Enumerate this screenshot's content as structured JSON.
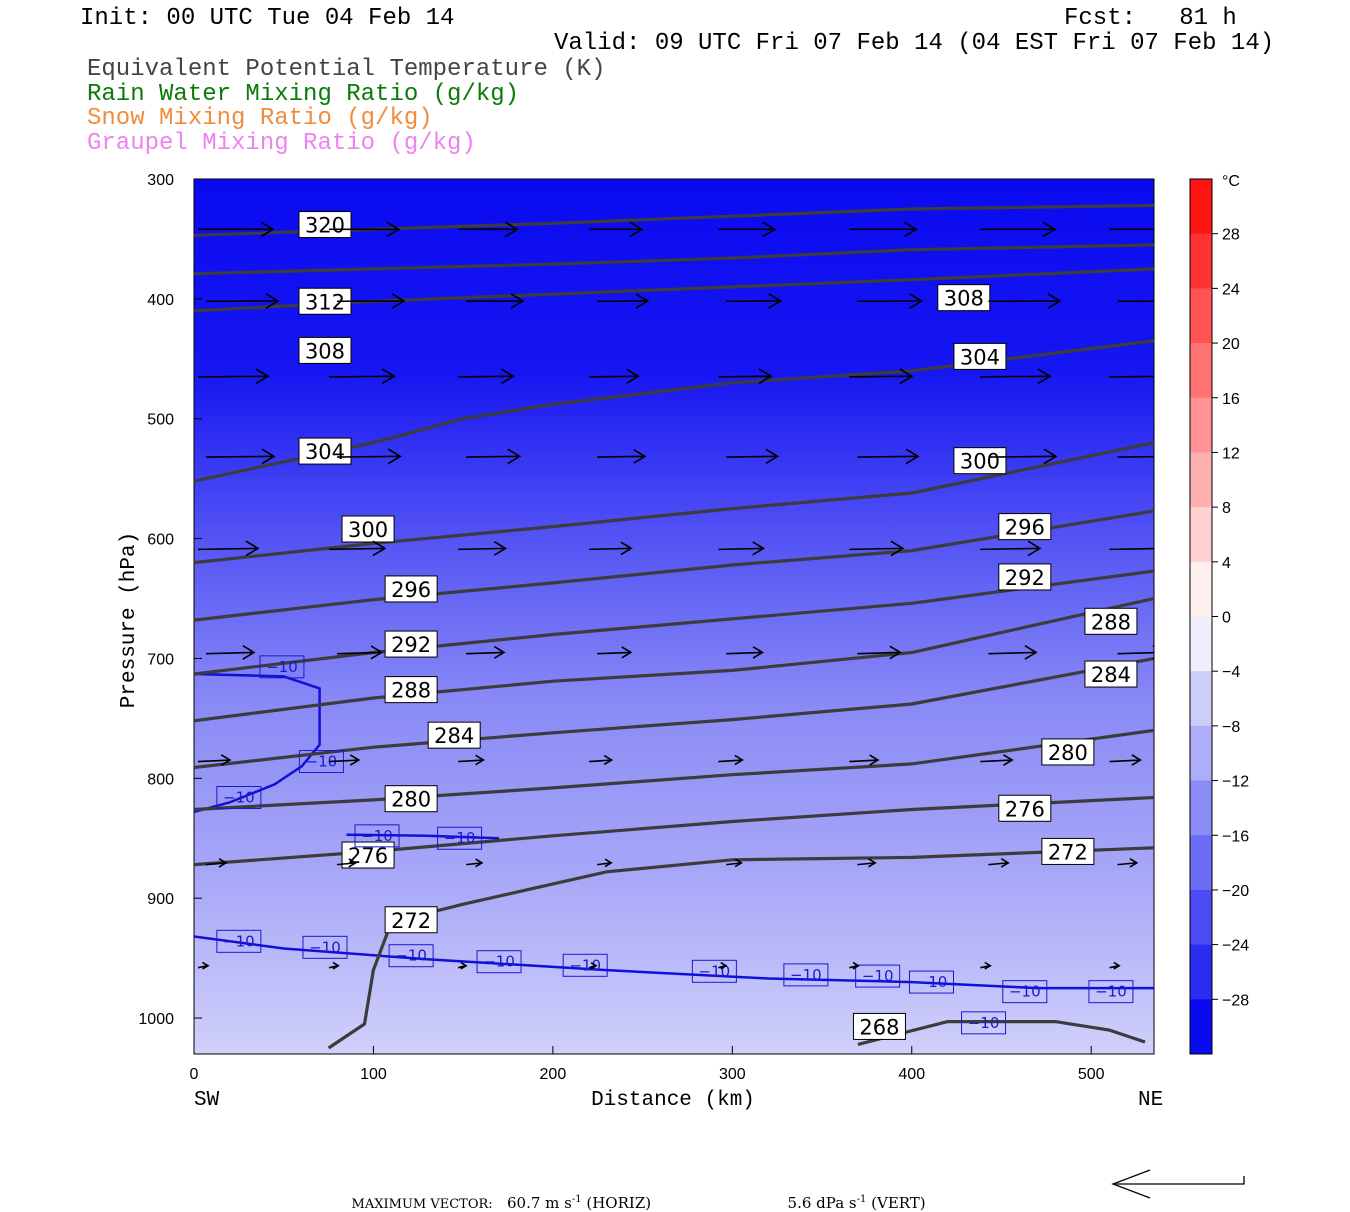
{
  "header": {
    "init": "Init: 00 UTC Tue 04 Feb 14",
    "fcst": "Fcst:   81 h",
    "valid": "Valid: 09 UTC Fri 07 Feb 14 (04 EST Fri 07 Feb 14)"
  },
  "legend": [
    {
      "text": "Equivalent Potential Temperature (K)",
      "color": "#444444"
    },
    {
      "text": "Rain Water Mixing Ratio (g/kg)",
      "color": "#0a7a0a"
    },
    {
      "text": "Snow Mixing Ratio (g/kg)",
      "color": "#f08c3c"
    },
    {
      "text": "Graupel Mixing Ratio (g/kg)",
      "color": "#ee82ee"
    }
  ],
  "axes": {
    "ylabel": "Pressure (hPa)",
    "xlabel": "Distance (km)",
    "left_end": "SW",
    "right_end": "NE"
  },
  "footer": {
    "max_vector_label": "MAXIMUM VECTOR:",
    "horiz_value": "60.7 m s",
    "horiz_unit": "(HORIZ)",
    "vert_value": "5.6 dPa s",
    "vert_unit": "(VERT)",
    "exponent": "-1"
  },
  "colorbar": {
    "unit": "°C",
    "ticks": [
      "28",
      "24",
      "20",
      "16",
      "12",
      "8",
      "4",
      "0",
      "−4",
      "−8",
      "−12",
      "−16",
      "−20",
      "−24",
      "−28"
    ]
  },
  "chart_data": {
    "type": "cross-section",
    "x": {
      "min": 0,
      "max": 535,
      "ticks": [
        0,
        100,
        200,
        300,
        400,
        500
      ],
      "unit": "km"
    },
    "y": {
      "min": 300,
      "max": 1030,
      "ticks": [
        300,
        400,
        500,
        600,
        700,
        800,
        900,
        1000
      ],
      "unit": "hPa",
      "inverted": true
    },
    "theta_e_contours": [
      {
        "label": "320",
        "points": [
          [
            0,
            347
          ],
          [
            100,
            342
          ],
          [
            200,
            337
          ],
          [
            300,
            331
          ],
          [
            400,
            325
          ],
          [
            535,
            322
          ]
        ],
        "labels": [
          [
            73,
            338
          ]
        ]
      },
      {
        "label": "312",
        "points": [
          [
            0,
            410
          ],
          [
            100,
            402
          ],
          [
            200,
            396
          ],
          [
            300,
            390
          ],
          [
            400,
            384
          ],
          [
            535,
            375
          ]
        ],
        "labels": [
          [
            73,
            402
          ]
        ]
      },
      {
        "label": "308",
        "points": [
          [
            0,
            379
          ],
          [
            100,
            375
          ],
          [
            200,
            371
          ],
          [
            300,
            366
          ],
          [
            400,
            359
          ],
          [
            535,
            355
          ]
        ],
        "labels": [
          [
            73,
            443
          ],
          [
            429,
            399
          ]
        ]
      },
      {
        "label": "304",
        "points": [
          [
            0,
            552
          ],
          [
            100,
            520
          ],
          [
            150,
            500
          ],
          [
            200,
            488
          ],
          [
            300,
            470
          ],
          [
            400,
            460
          ],
          [
            535,
            435
          ]
        ],
        "labels": [
          [
            73,
            527
          ],
          [
            438,
            448
          ]
        ]
      },
      {
        "label": "300",
        "points": [
          [
            0,
            620
          ],
          [
            100,
            604
          ],
          [
            200,
            590
          ],
          [
            300,
            575
          ],
          [
            400,
            562
          ],
          [
            535,
            520
          ]
        ],
        "labels": [
          [
            97,
            592
          ],
          [
            438,
            535
          ]
        ]
      },
      {
        "label": "296",
        "points": [
          [
            0,
            668
          ],
          [
            100,
            651
          ],
          [
            200,
            637
          ],
          [
            300,
            622
          ],
          [
            400,
            610
          ],
          [
            535,
            577
          ]
        ],
        "labels": [
          [
            121,
            642
          ],
          [
            463,
            590
          ]
        ]
      },
      {
        "label": "292",
        "points": [
          [
            0,
            713
          ],
          [
            100,
            695
          ],
          [
            200,
            680
          ],
          [
            300,
            667
          ],
          [
            400,
            654
          ],
          [
            535,
            627
          ]
        ],
        "labels": [
          [
            121,
            688
          ],
          [
            463,
            632
          ]
        ]
      },
      {
        "label": "288",
        "points": [
          [
            0,
            752
          ],
          [
            100,
            733
          ],
          [
            200,
            719
          ],
          [
            300,
            710
          ],
          [
            400,
            695
          ],
          [
            535,
            650
          ]
        ],
        "labels": [
          [
            121,
            726
          ],
          [
            511,
            669
          ]
        ]
      },
      {
        "label": "284",
        "points": [
          [
            0,
            791
          ],
          [
            100,
            774
          ],
          [
            200,
            762
          ],
          [
            300,
            751
          ],
          [
            400,
            738
          ],
          [
            535,
            700
          ]
        ],
        "labels": [
          [
            145,
            764
          ],
          [
            511,
            713
          ]
        ]
      },
      {
        "label": "280",
        "points": [
          [
            0,
            826
          ],
          [
            100,
            818
          ],
          [
            200,
            808
          ],
          [
            300,
            797
          ],
          [
            400,
            788
          ],
          [
            535,
            760
          ]
        ],
        "labels": [
          [
            121,
            817
          ],
          [
            487,
            778
          ]
        ]
      },
      {
        "label": "276",
        "points": [
          [
            0,
            872
          ],
          [
            100,
            861
          ],
          [
            200,
            848
          ],
          [
            300,
            836
          ],
          [
            400,
            826
          ],
          [
            535,
            816
          ]
        ],
        "labels": [
          [
            97,
            864
          ],
          [
            463,
            825
          ]
        ]
      },
      {
        "label": "272",
        "points": [
          [
            75,
            1025
          ],
          [
            95,
            1005
          ],
          [
            100,
            960
          ],
          [
            110,
            920
          ],
          [
            150,
            905
          ],
          [
            230,
            878
          ],
          [
            300,
            868
          ],
          [
            400,
            866
          ],
          [
            535,
            858
          ]
        ],
        "labels": [
          [
            121,
            918
          ],
          [
            487,
            861
          ]
        ]
      },
      {
        "label": "268",
        "points": [
          [
            370,
            1022
          ],
          [
            420,
            1003
          ],
          [
            480,
            1003
          ],
          [
            510,
            1010
          ],
          [
            530,
            1020
          ]
        ],
        "labels": [
          [
            382,
            1007
          ]
        ]
      }
    ],
    "temperature_contours": [
      {
        "label": "-10",
        "points": [
          [
            0,
            713
          ],
          [
            50,
            715
          ],
          [
            70,
            725
          ],
          [
            70,
            772
          ],
          [
            60,
            790
          ],
          [
            45,
            805
          ],
          [
            20,
            820
          ],
          [
            0,
            828
          ]
        ],
        "labels": [
          [
            49,
            707
          ],
          [
            71,
            786
          ],
          [
            25,
            816
          ]
        ]
      },
      {
        "label": "-10",
        "points": [
          [
            85,
            847
          ],
          [
            130,
            848
          ],
          [
            170,
            850
          ]
        ],
        "labels": [
          [
            102,
            848
          ],
          [
            148,
            850
          ]
        ]
      },
      {
        "label": "-10",
        "points": [
          [
            0,
            932
          ],
          [
            50,
            942
          ],
          [
            130,
            951
          ],
          [
            230,
            960
          ],
          [
            320,
            967
          ],
          [
            400,
            970
          ],
          [
            470,
            975
          ],
          [
            535,
            975
          ]
        ],
        "labels": [
          [
            25,
            936
          ],
          [
            73,
            941
          ],
          [
            121,
            948
          ],
          [
            170,
            953
          ],
          [
            218,
            956
          ],
          [
            290,
            961
          ],
          [
            341,
            964
          ],
          [
            381,
            965
          ],
          [
            411,
            970
          ],
          [
            463,
            978
          ],
          [
            511,
            978
          ],
          [
            440,
            1004
          ]
        ]
      }
    ],
    "temperature_shading_range_c": [
      -32,
      32
    ],
    "max_vector": {
      "horiz_m_s": 60.7,
      "vert_dPa_s": 5.6
    }
  }
}
